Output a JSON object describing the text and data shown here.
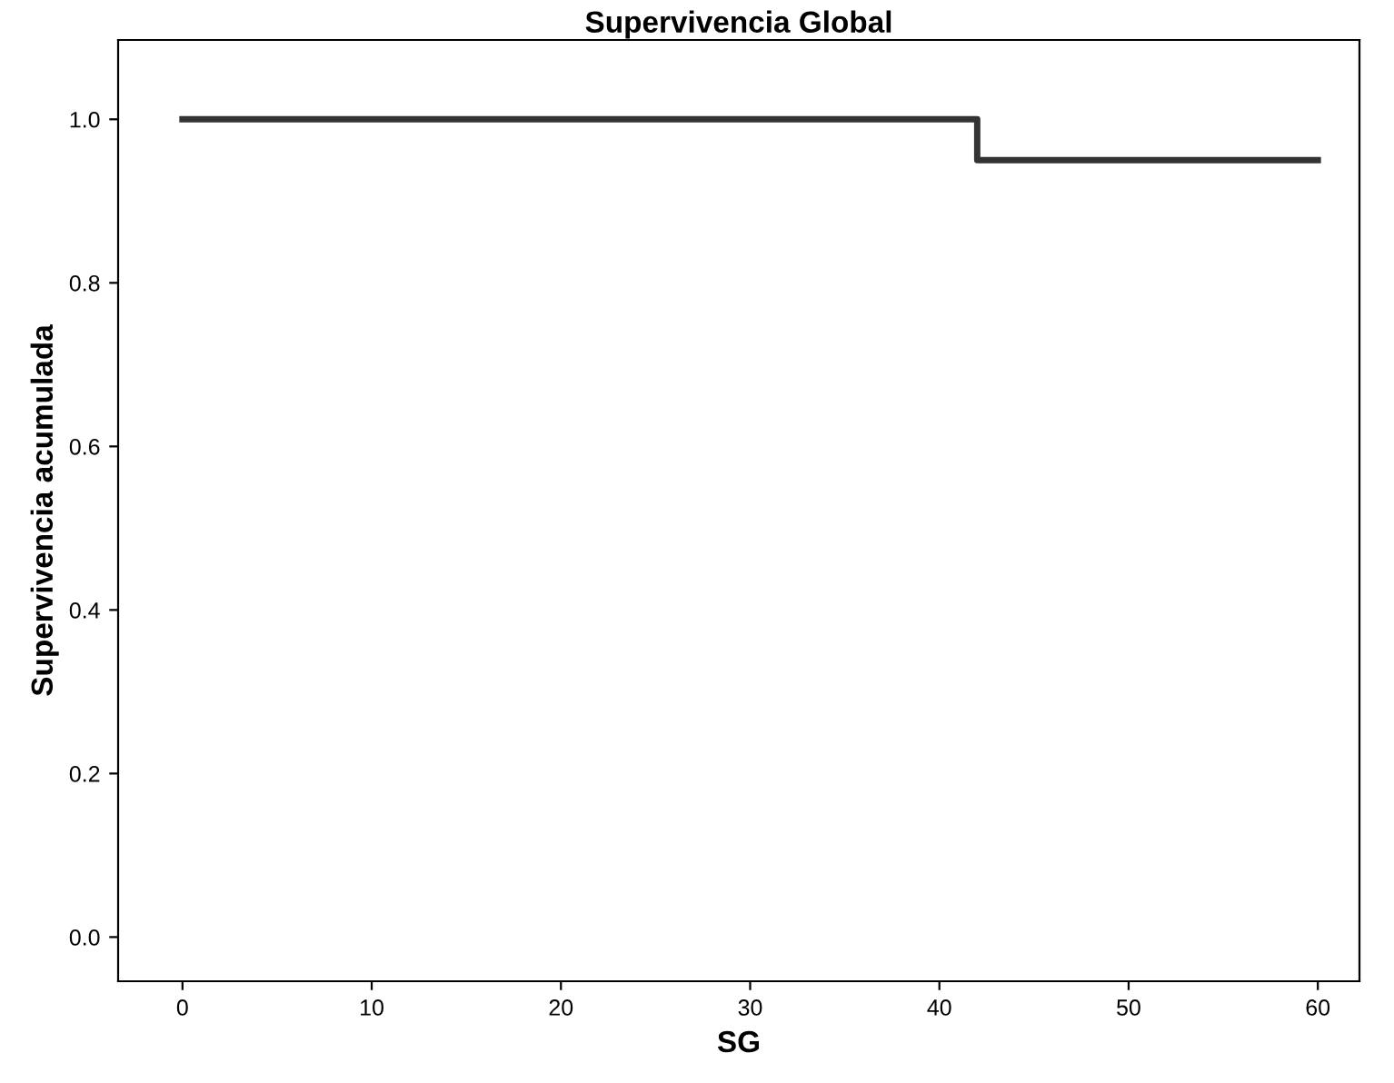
{
  "chart_data": {
    "type": "step",
    "title": "Supervivencia Global",
    "xlabel": "SG",
    "ylabel": "Supervivencia acumulada",
    "series": [
      {
        "x": [
          0,
          42,
          60
        ],
        "values": [
          1.0,
          0.95,
          0.95
        ],
        "color": "#333333"
      }
    ],
    "xlim": [
      -3.4,
      62.2
    ],
    "xticks": [
      0,
      10,
      20,
      30,
      40,
      50,
      60
    ],
    "ylim": [
      -0.054,
      1.097
    ],
    "yticks": [
      {
        "value": 0,
        "label": "0.0"
      },
      {
        "value": 0.2,
        "label": "0.2"
      },
      {
        "value": 0.4,
        "label": "0.4"
      },
      {
        "value": 0.6,
        "label": "0.6"
      },
      {
        "value": 0.8,
        "label": "0.8"
      },
      {
        "value": 1,
        "label": "1.0"
      }
    ],
    "grid": false,
    "legend": false,
    "line_style": "solid",
    "marker": "none"
  }
}
